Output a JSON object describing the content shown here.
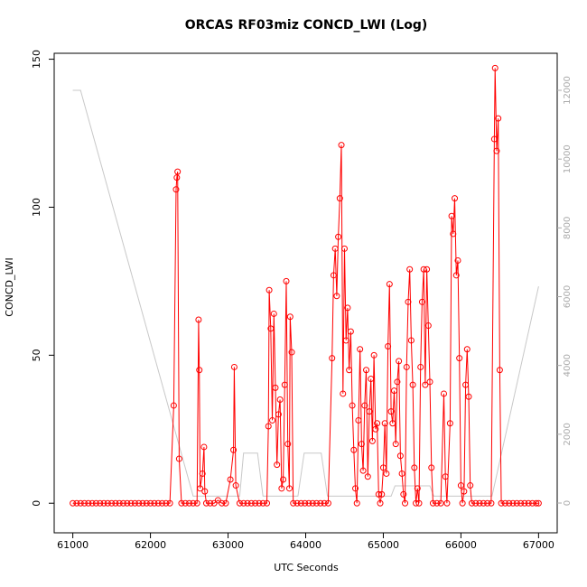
{
  "chart_data": {
    "type": "line",
    "title": "ORCAS RF03miz CONCD_LWI (Log)",
    "x_label": "UTC Seconds",
    "y_label": "CONCD_LWI",
    "xlim": [
      60760,
      67240
    ],
    "xticks": [
      61000,
      62000,
      63000,
      64000,
      65000,
      66000,
      67000
    ],
    "ylim": [
      -10,
      152
    ],
    "yticks": [
      0,
      50,
      100,
      150
    ],
    "y2lim": [
      -866,
      13077
    ],
    "y2ticks": [
      0,
      2000,
      4000,
      6000,
      8000,
      10000,
      12000
    ],
    "series": [
      {
        "color": "#ff0000",
        "markers": true,
        "x": [
          61000,
          61050,
          61100,
          61150,
          61200,
          61250,
          61300,
          61350,
          61400,
          61450,
          61500,
          61550,
          61600,
          61650,
          61700,
          61750,
          61800,
          61850,
          61900,
          61950,
          62000,
          62050,
          62100,
          62150,
          62200,
          62250,
          62300,
          62330,
          62340,
          62350,
          62370,
          62400,
          62450,
          62500,
          62550,
          62600,
          62620,
          62630,
          62640,
          62670,
          62690,
          62700,
          62720,
          62770,
          62820,
          62870,
          62920,
          62970,
          63030,
          63070,
          63080,
          63100,
          63150,
          63200,
          63250,
          63300,
          63350,
          63400,
          63450,
          63500,
          63520,
          63530,
          63550,
          63570,
          63590,
          63610,
          63630,
          63650,
          63670,
          63690,
          63710,
          63730,
          63750,
          63770,
          63790,
          63800,
          63820,
          63840,
          63890,
          63940,
          63990,
          64040,
          64090,
          64140,
          64190,
          64240,
          64290,
          64340,
          64360,
          64380,
          64400,
          64420,
          64440,
          64460,
          64480,
          64500,
          64520,
          64540,
          64560,
          64580,
          64600,
          64620,
          64640,
          64660,
          64680,
          64700,
          64720,
          64740,
          64760,
          64780,
          64800,
          64820,
          64840,
          64860,
          64880,
          64900,
          64920,
          64940,
          64960,
          64980,
          65000,
          65020,
          65040,
          65060,
          65080,
          65100,
          65120,
          65140,
          65160,
          65180,
          65200,
          65220,
          65240,
          65260,
          65280,
          65300,
          65320,
          65340,
          65360,
          65380,
          65400,
          65420,
          65440,
          65460,
          65480,
          65500,
          65520,
          65540,
          65560,
          65580,
          65600,
          65620,
          65640,
          65690,
          65740,
          65780,
          65800,
          65820,
          65860,
          65880,
          65900,
          65920,
          65940,
          65960,
          65980,
          66000,
          66020,
          66040,
          66060,
          66080,
          66100,
          66120,
          66140,
          66190,
          66240,
          66290,
          66340,
          66390,
          66430,
          66440,
          66460,
          66480,
          66500,
          66520,
          66570,
          66620,
          66670,
          66720,
          66770,
          66820,
          66870,
          66920,
          66970,
          67000
        ],
        "values": [
          0,
          0,
          0,
          0,
          0,
          0,
          0,
          0,
          0,
          0,
          0,
          0,
          0,
          0,
          0,
          0,
          0,
          0,
          0,
          0,
          0,
          0,
          0,
          0,
          0,
          0,
          33,
          106,
          110,
          112,
          15,
          0,
          0,
          0,
          0,
          0,
          62,
          45,
          5,
          10,
          19,
          4,
          0,
          0,
          0,
          1,
          0,
          0,
          8,
          18,
          46,
          6,
          0,
          0,
          0,
          0,
          0,
          0,
          0,
          0,
          26,
          72,
          59,
          28,
          64,
          39,
          13,
          30,
          35,
          5,
          8,
          40,
          75,
          20,
          5,
          63,
          51,
          0,
          0,
          0,
          0,
          0,
          0,
          0,
          0,
          0,
          0,
          49,
          77,
          86,
          70,
          90,
          103,
          121,
          37,
          86,
          55,
          66,
          45,
          58,
          33,
          18,
          5,
          0,
          28,
          52,
          20,
          11,
          33,
          45,
          9,
          31,
          42,
          21,
          50,
          25,
          27,
          3,
          0,
          3,
          12,
          27,
          10,
          53,
          74,
          31,
          27,
          38,
          20,
          41,
          48,
          16,
          10,
          3,
          0,
          46,
          68,
          79,
          55,
          40,
          12,
          0,
          5,
          0,
          46,
          68,
          79,
          40,
          79,
          60,
          41,
          12,
          0,
          0,
          0,
          37,
          9,
          0,
          27,
          97,
          91,
          103,
          77,
          82,
          49,
          6,
          0,
          4,
          40,
          52,
          36,
          6,
          0,
          0,
          0,
          0,
          0,
          0,
          123,
          147,
          119,
          130,
          45,
          0,
          0,
          0,
          0,
          0,
          0,
          0,
          0,
          0,
          0,
          0
        ]
      },
      {
        "color": "#c8c8c8",
        "axis": "y2",
        "markers": false,
        "x": [
          61000,
          61100,
          62550,
          63150,
          63200,
          63380,
          63450,
          63900,
          63980,
          64200,
          64280,
          65100,
          65150,
          65600,
          65650,
          66400,
          67000
        ],
        "values": [
          12000,
          12000,
          200,
          200,
          1450,
          1450,
          200,
          200,
          1450,
          1450,
          200,
          200,
          500,
          500,
          200,
          200,
          6300
        ]
      }
    ]
  }
}
